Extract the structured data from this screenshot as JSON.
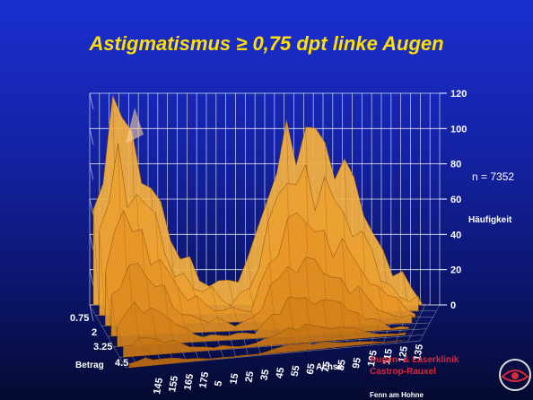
{
  "slide": {
    "title": "Astigmatismus ≥ 0,75 dpt linke Augen",
    "n_label": "n = 7352",
    "logo": {
      "line1": "Augen- & Laserklinik",
      "line2": "Castrop-Rauxel",
      "line3": "Fenn am Hohne"
    }
  },
  "chart_data": {
    "type": "surface3d",
    "title": "Astigmatismus ≥ 0,75 dpt linke Augen",
    "z_label": "Häufigkeit",
    "x_label": "Achse",
    "y_label": "Betrag",
    "zlim": [
      0,
      120
    ],
    "z_ticks": [
      "0",
      "20",
      "40",
      "60",
      "80",
      "100",
      "120"
    ],
    "x_ticks": [
      "145",
      "155",
      "165",
      "175",
      "5",
      "15",
      "25",
      "35",
      "45",
      "55",
      "65",
      "75",
      "85",
      "95",
      "105",
      "115",
      "125",
      "135"
    ],
    "y_ticks": [
      "0.75",
      "2",
      "3.25",
      "4.5"
    ],
    "grid": true,
    "surface_color": "#e8a020",
    "n": 7352,
    "profile": {
      "axis": [
        145,
        155,
        165,
        175,
        5,
        15,
        25,
        35,
        45,
        55,
        65,
        75,
        85,
        95,
        105,
        115,
        125,
        135
      ],
      "frequency_at_lowest_betrag": [
        60,
        116,
        90,
        70,
        35,
        20,
        15,
        12,
        18,
        60,
        98,
        105,
        90,
        75,
        55,
        30,
        12,
        6
      ]
    }
  }
}
